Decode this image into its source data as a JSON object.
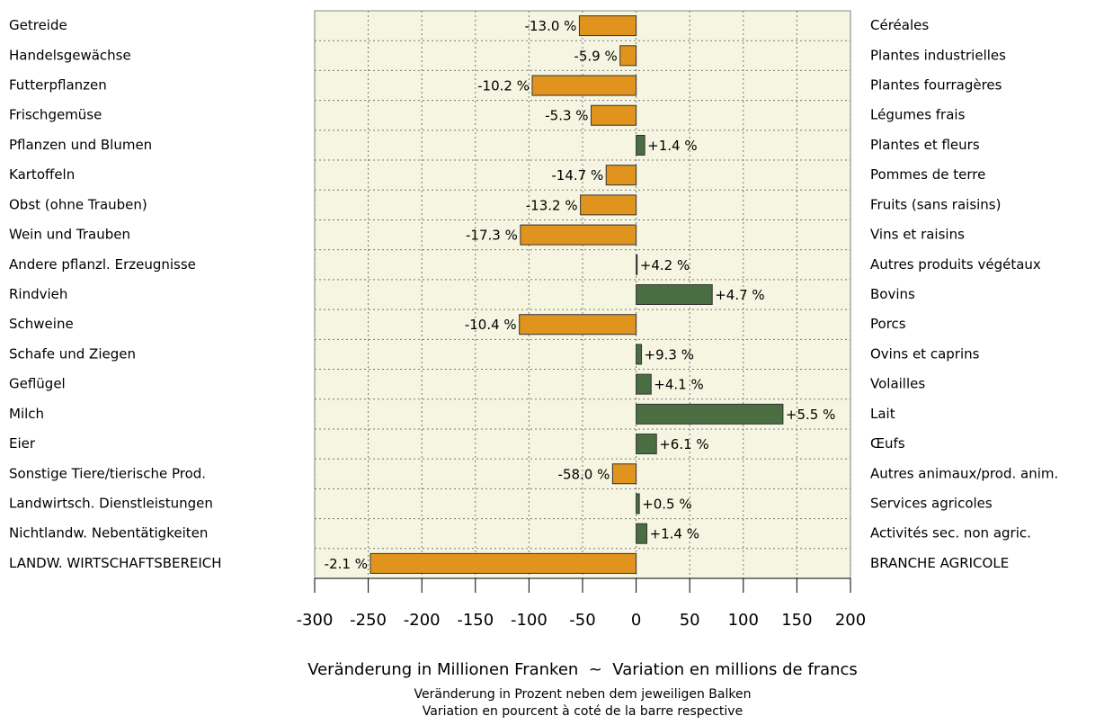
{
  "chart_data": {
    "type": "barh",
    "categories": [
      "Getreide",
      "Handelsgewächse",
      "Futterpflanzen",
      "Frischgemüse",
      "Pflanzen und Blumen",
      "Kartoffeln",
      "Obst (ohne Trauben)",
      "Wein und Trauben",
      "Andere pflanzl. Erzeugnisse",
      "Rindvieh",
      "Schweine",
      "Schafe und Ziegen",
      "Geflügel",
      "Milch",
      "Eier",
      "Sonstige Tiere/tierische Prod.",
      "Landwirtsch. Dienstleistungen",
      "Nichtlandw. Nebentätigkeiten",
      "LANDW. WIRTSCHAFTSBEREICH"
    ],
    "categories_right": [
      "Céréales",
      "Plantes industrielles",
      "Plantes fourragères",
      "Légumes frais",
      "Plantes et fleurs",
      "Pommes de terre",
      "Fruits (sans raisins)",
      "Vins et raisins",
      "Autres produits végétaux",
      "Bovins",
      "Porcs",
      "Ovins et caprins",
      "Volailles",
      "Lait",
      "Œufs",
      "Autres animaux/prod. anim.",
      "Services agricoles",
      "Activités sec. non agric.",
      "BRANCHE AGRICOLE"
    ],
    "values": [
      -53,
      -15,
      -97,
      -42,
      8,
      -28,
      -52,
      -108,
      1,
      71,
      -109,
      5,
      14,
      137,
      19,
      -22,
      3,
      10,
      -248
    ],
    "percent_labels": [
      "-13.0 %",
      "-5.9 %",
      "-10.2 %",
      "-5.3 %",
      "+1.4 %",
      "-14.7 %",
      "-13.2 %",
      "-17.3 %",
      "+4.2 %",
      "+4.7 %",
      "-10.4 %",
      "+9.3 %",
      "+4.1 %",
      "+5.5 %",
      "+6.1 %",
      "-58.0 %",
      "+0.5 %",
      "+1.4 %",
      "-2.1 %"
    ],
    "color_positive": "#4a6e41",
    "color_negative": "#e0941e",
    "xlim": [
      -300,
      200
    ],
    "xticks": [
      -300,
      -250,
      -200,
      -150,
      -100,
      -50,
      0,
      50,
      100,
      150,
      200
    ],
    "grid": true,
    "xlabel": "Veränderung in Millionen Franken  ~  Variation en millions de francs",
    "notes": [
      "Veränderung in Prozent neben dem jeweiligen Balken",
      "Variation en pourcent à coté de la barre respective"
    ]
  }
}
